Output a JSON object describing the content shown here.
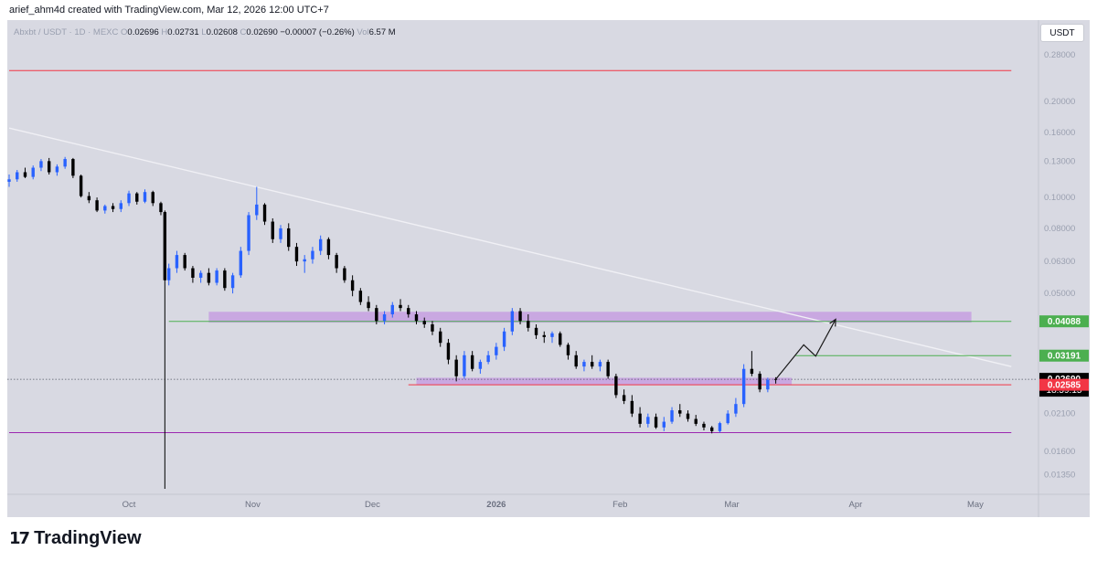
{
  "header": {
    "credit": "arief_ahm4d created with TradingView.com, Mar 12, 2026 12:00 UTC+7"
  },
  "legend": {
    "symbol": "Abxbt / USDT · 1D · MEXC",
    "open_label": "O",
    "open": "0.02696",
    "high_label": "H",
    "high": "0.02731",
    "low_label": "L",
    "low": "0.02608",
    "close_label": "C",
    "close": "0.02690",
    "change": "−0.00007 (−0.26%)",
    "vol_label": "Vol",
    "vol": "6.57 M"
  },
  "currency_button": "USDT",
  "footer": {
    "brand": "TradingView",
    "mark": "17"
  },
  "colors": {
    "bg": "#d8d9e2",
    "up": "#2962ff",
    "down": "#000000",
    "zone": "#c79fe0",
    "green_level": "#4caf50",
    "red_level": "#f23645",
    "purple_level": "#9c27b0",
    "trendline": "#f0f0f5"
  },
  "chart_data": {
    "type": "candlestick",
    "title": "Abxbt / USDT · 1D · MEXC",
    "y_scale": "log",
    "yticks": [
      "0.28000",
      "0.20000",
      "0.16000",
      "0.13000",
      "0.10000",
      "0.08000",
      "0.06300",
      "0.05000",
      "0.04000",
      "0.03200",
      "0.02600",
      "0.02100",
      "0.01600",
      "0.01350"
    ],
    "xticks": [
      "Oct",
      "Nov",
      "Dec",
      "2026",
      "Feb",
      "Mar",
      "Apr",
      "May"
    ],
    "ylim": [
      0.0118,
      0.36
    ],
    "price_labels": [
      {
        "value": 0.04088,
        "text": "0.04088",
        "color": "#4caf50"
      },
      {
        "value": 0.03191,
        "text": "0.03191",
        "color": "#4caf50"
      },
      {
        "value": 0.0269,
        "text": "0.02690",
        "color": "#000000",
        "sub": "18:59:15"
      },
      {
        "value": 0.02585,
        "text": "0.02585",
        "color": "#f23645"
      }
    ],
    "horizontal_lines": [
      {
        "value": 0.25,
        "color": "#f23645",
        "from": "2025-09-01",
        "to": "2026-05-10"
      },
      {
        "value": 0.04088,
        "color": "#4caf50",
        "from": "2025-10-11",
        "to": "2026-05-10"
      },
      {
        "value": 0.03191,
        "color": "#4caf50",
        "from": "2026-03-17",
        "to": "2026-05-10"
      },
      {
        "value": 0.02585,
        "color": "#f23645",
        "from": "2025-12-10",
        "to": "2026-05-10"
      },
      {
        "value": 0.0183,
        "color": "#9c27b0",
        "from": "2025-09-01",
        "to": "2026-05-10"
      }
    ],
    "current_price_line": 0.0269,
    "zones": [
      {
        "from": "2025-10-21",
        "to": "2026-04-30",
        "low": 0.0405,
        "high": 0.0438
      },
      {
        "from": "2025-12-12",
        "to": "2026-03-16",
        "low": 0.0258,
        "high": 0.0272
      }
    ],
    "trendline": [
      {
        "date": "2025-09-01",
        "value": 0.165
      },
      {
        "date": "2026-05-10",
        "value": 0.0295
      }
    ],
    "projection_path": [
      {
        "date": "2026-03-12",
        "value": 0.0269
      },
      {
        "date": "2026-03-19",
        "value": 0.0345
      },
      {
        "date": "2026-03-22",
        "value": 0.0318
      },
      {
        "date": "2026-03-27",
        "value": 0.0415
      }
    ],
    "candles": [
      {
        "date": "2025-09-01",
        "o": 0.112,
        "h": 0.118,
        "l": 0.108,
        "c": 0.114
      },
      {
        "date": "2025-09-03",
        "o": 0.114,
        "h": 0.122,
        "l": 0.112,
        "c": 0.12
      },
      {
        "date": "2025-09-05",
        "o": 0.12,
        "h": 0.124,
        "l": 0.115,
        "c": 0.116
      },
      {
        "date": "2025-09-07",
        "o": 0.116,
        "h": 0.126,
        "l": 0.114,
        "c": 0.124
      },
      {
        "date": "2025-09-09",
        "o": 0.124,
        "h": 0.132,
        "l": 0.121,
        "c": 0.13
      },
      {
        "date": "2025-09-11",
        "o": 0.13,
        "h": 0.133,
        "l": 0.118,
        "c": 0.12
      },
      {
        "date": "2025-09-13",
        "o": 0.12,
        "h": 0.127,
        "l": 0.117,
        "c": 0.125
      },
      {
        "date": "2025-09-15",
        "o": 0.125,
        "h": 0.134,
        "l": 0.123,
        "c": 0.132
      },
      {
        "date": "2025-09-17",
        "o": 0.132,
        "h": 0.133,
        "l": 0.115,
        "c": 0.117
      },
      {
        "date": "2025-09-19",
        "o": 0.117,
        "h": 0.118,
        "l": 0.1,
        "c": 0.101
      },
      {
        "date": "2025-09-21",
        "o": 0.101,
        "h": 0.104,
        "l": 0.096,
        "c": 0.098
      },
      {
        "date": "2025-09-23",
        "o": 0.098,
        "h": 0.1,
        "l": 0.09,
        "c": 0.091
      },
      {
        "date": "2025-09-25",
        "o": 0.091,
        "h": 0.095,
        "l": 0.089,
        "c": 0.094
      },
      {
        "date": "2025-09-27",
        "o": 0.094,
        "h": 0.096,
        "l": 0.09,
        "c": 0.092
      },
      {
        "date": "2025-09-29",
        "o": 0.092,
        "h": 0.098,
        "l": 0.09,
        "c": 0.096
      },
      {
        "date": "2025-10-01",
        "o": 0.096,
        "h": 0.105,
        "l": 0.094,
        "c": 0.103
      },
      {
        "date": "2025-10-03",
        "o": 0.103,
        "h": 0.104,
        "l": 0.095,
        "c": 0.097
      },
      {
        "date": "2025-10-05",
        "o": 0.097,
        "h": 0.106,
        "l": 0.096,
        "c": 0.104
      },
      {
        "date": "2025-10-07",
        "o": 0.104,
        "h": 0.105,
        "l": 0.094,
        "c": 0.096
      },
      {
        "date": "2025-10-09",
        "o": 0.096,
        "h": 0.097,
        "l": 0.088,
        "c": 0.09
      },
      {
        "date": "2025-10-10",
        "o": 0.09,
        "h": 0.091,
        "l": 0.0122,
        "c": 0.055
      },
      {
        "date": "2025-10-11",
        "o": 0.055,
        "h": 0.062,
        "l": 0.053,
        "c": 0.06
      },
      {
        "date": "2025-10-13",
        "o": 0.06,
        "h": 0.068,
        "l": 0.058,
        "c": 0.066
      },
      {
        "date": "2025-10-15",
        "o": 0.066,
        "h": 0.067,
        "l": 0.059,
        "c": 0.06
      },
      {
        "date": "2025-10-17",
        "o": 0.06,
        "h": 0.061,
        "l": 0.054,
        "c": 0.056
      },
      {
        "date": "2025-10-19",
        "o": 0.056,
        "h": 0.059,
        "l": 0.054,
        "c": 0.058
      },
      {
        "date": "2025-10-21",
        "o": 0.058,
        "h": 0.06,
        "l": 0.053,
        "c": 0.054
      },
      {
        "date": "2025-10-23",
        "o": 0.054,
        "h": 0.06,
        "l": 0.053,
        "c": 0.059
      },
      {
        "date": "2025-10-25",
        "o": 0.059,
        "h": 0.06,
        "l": 0.051,
        "c": 0.052
      },
      {
        "date": "2025-10-27",
        "o": 0.052,
        "h": 0.058,
        "l": 0.05,
        "c": 0.057
      },
      {
        "date": "2025-10-29",
        "o": 0.057,
        "h": 0.07,
        "l": 0.056,
        "c": 0.068
      },
      {
        "date": "2025-10-31",
        "o": 0.068,
        "h": 0.09,
        "l": 0.066,
        "c": 0.088
      },
      {
        "date": "2025-11-02",
        "o": 0.088,
        "h": 0.108,
        "l": 0.085,
        "c": 0.095
      },
      {
        "date": "2025-11-04",
        "o": 0.095,
        "h": 0.096,
        "l": 0.082,
        "c": 0.084
      },
      {
        "date": "2025-11-06",
        "o": 0.084,
        "h": 0.086,
        "l": 0.072,
        "c": 0.074
      },
      {
        "date": "2025-11-08",
        "o": 0.074,
        "h": 0.082,
        "l": 0.072,
        "c": 0.08
      },
      {
        "date": "2025-11-10",
        "o": 0.08,
        "h": 0.083,
        "l": 0.068,
        "c": 0.07
      },
      {
        "date": "2025-11-12",
        "o": 0.07,
        "h": 0.072,
        "l": 0.061,
        "c": 0.063
      },
      {
        "date": "2025-11-14",
        "o": 0.063,
        "h": 0.066,
        "l": 0.058,
        "c": 0.064
      },
      {
        "date": "2025-11-16",
        "o": 0.064,
        "h": 0.07,
        "l": 0.062,
        "c": 0.068
      },
      {
        "date": "2025-11-18",
        "o": 0.068,
        "h": 0.076,
        "l": 0.066,
        "c": 0.074
      },
      {
        "date": "2025-11-20",
        "o": 0.074,
        "h": 0.075,
        "l": 0.064,
        "c": 0.066
      },
      {
        "date": "2025-11-22",
        "o": 0.066,
        "h": 0.067,
        "l": 0.058,
        "c": 0.06
      },
      {
        "date": "2025-11-24",
        "o": 0.06,
        "h": 0.061,
        "l": 0.054,
        "c": 0.055
      },
      {
        "date": "2025-11-26",
        "o": 0.055,
        "h": 0.057,
        "l": 0.049,
        "c": 0.051
      },
      {
        "date": "2025-11-28",
        "o": 0.051,
        "h": 0.052,
        "l": 0.046,
        "c": 0.047
      },
      {
        "date": "2025-11-30",
        "o": 0.047,
        "h": 0.049,
        "l": 0.044,
        "c": 0.045
      },
      {
        "date": "2025-12-02",
        "o": 0.045,
        "h": 0.046,
        "l": 0.04,
        "c": 0.041
      },
      {
        "date": "2025-12-04",
        "o": 0.041,
        "h": 0.044,
        "l": 0.04,
        "c": 0.043
      },
      {
        "date": "2025-12-06",
        "o": 0.043,
        "h": 0.047,
        "l": 0.042,
        "c": 0.046
      },
      {
        "date": "2025-12-08",
        "o": 0.046,
        "h": 0.048,
        "l": 0.044,
        "c": 0.045
      },
      {
        "date": "2025-12-10",
        "o": 0.045,
        "h": 0.046,
        "l": 0.042,
        "c": 0.043
      },
      {
        "date": "2025-12-12",
        "o": 0.043,
        "h": 0.044,
        "l": 0.04,
        "c": 0.041
      },
      {
        "date": "2025-12-14",
        "o": 0.041,
        "h": 0.042,
        "l": 0.039,
        "c": 0.04
      },
      {
        "date": "2025-12-16",
        "o": 0.04,
        "h": 0.041,
        "l": 0.037,
        "c": 0.038
      },
      {
        "date": "2025-12-18",
        "o": 0.038,
        "h": 0.039,
        "l": 0.034,
        "c": 0.035
      },
      {
        "date": "2025-12-20",
        "o": 0.035,
        "h": 0.036,
        "l": 0.03,
        "c": 0.031
      },
      {
        "date": "2025-12-22",
        "o": 0.031,
        "h": 0.032,
        "l": 0.0265,
        "c": 0.0275
      },
      {
        "date": "2025-12-24",
        "o": 0.0275,
        "h": 0.033,
        "l": 0.027,
        "c": 0.032
      },
      {
        "date": "2025-12-26",
        "o": 0.032,
        "h": 0.033,
        "l": 0.0285,
        "c": 0.029
      },
      {
        "date": "2025-12-28",
        "o": 0.029,
        "h": 0.031,
        "l": 0.028,
        "c": 0.0305
      },
      {
        "date": "2025-12-30",
        "o": 0.0305,
        "h": 0.033,
        "l": 0.03,
        "c": 0.032
      },
      {
        "date": "2026-01-01",
        "o": 0.032,
        "h": 0.035,
        "l": 0.031,
        "c": 0.034
      },
      {
        "date": "2026-01-03",
        "o": 0.034,
        "h": 0.039,
        "l": 0.033,
        "c": 0.038
      },
      {
        "date": "2026-01-05",
        "o": 0.038,
        "h": 0.045,
        "l": 0.037,
        "c": 0.044
      },
      {
        "date": "2026-01-07",
        "o": 0.044,
        "h": 0.045,
        "l": 0.04,
        "c": 0.041
      },
      {
        "date": "2026-01-09",
        "o": 0.041,
        "h": 0.043,
        "l": 0.038,
        "c": 0.039
      },
      {
        "date": "2026-01-11",
        "o": 0.039,
        "h": 0.04,
        "l": 0.036,
        "c": 0.037
      },
      {
        "date": "2026-01-13",
        "o": 0.037,
        "h": 0.038,
        "l": 0.035,
        "c": 0.0365
      },
      {
        "date": "2026-01-15",
        "o": 0.0365,
        "h": 0.038,
        "l": 0.035,
        "c": 0.0375
      },
      {
        "date": "2026-01-17",
        "o": 0.0375,
        "h": 0.038,
        "l": 0.034,
        "c": 0.0345
      },
      {
        "date": "2026-01-19",
        "o": 0.0345,
        "h": 0.035,
        "l": 0.031,
        "c": 0.032
      },
      {
        "date": "2026-01-21",
        "o": 0.032,
        "h": 0.033,
        "l": 0.029,
        "c": 0.0295
      },
      {
        "date": "2026-01-23",
        "o": 0.0295,
        "h": 0.031,
        "l": 0.0285,
        "c": 0.0305
      },
      {
        "date": "2026-01-25",
        "o": 0.0305,
        "h": 0.032,
        "l": 0.029,
        "c": 0.0295
      },
      {
        "date": "2026-01-27",
        "o": 0.0295,
        "h": 0.031,
        "l": 0.0285,
        "c": 0.0305
      },
      {
        "date": "2026-01-29",
        "o": 0.0305,
        "h": 0.031,
        "l": 0.027,
        "c": 0.0275
      },
      {
        "date": "2026-01-31",
        "o": 0.0275,
        "h": 0.028,
        "l": 0.0235,
        "c": 0.024
      },
      {
        "date": "2026-02-02",
        "o": 0.024,
        "h": 0.025,
        "l": 0.0225,
        "c": 0.023
      },
      {
        "date": "2026-02-04",
        "o": 0.023,
        "h": 0.024,
        "l": 0.0205,
        "c": 0.021
      },
      {
        "date": "2026-02-06",
        "o": 0.021,
        "h": 0.022,
        "l": 0.019,
        "c": 0.0195
      },
      {
        "date": "2026-02-08",
        "o": 0.0195,
        "h": 0.021,
        "l": 0.019,
        "c": 0.0205
      },
      {
        "date": "2026-02-10",
        "o": 0.0205,
        "h": 0.021,
        "l": 0.0188,
        "c": 0.019
      },
      {
        "date": "2026-02-12",
        "o": 0.019,
        "h": 0.0205,
        "l": 0.0185,
        "c": 0.0198
      },
      {
        "date": "2026-02-14",
        "o": 0.0198,
        "h": 0.022,
        "l": 0.0195,
        "c": 0.0215
      },
      {
        "date": "2026-02-16",
        "o": 0.0215,
        "h": 0.0225,
        "l": 0.0205,
        "c": 0.021
      },
      {
        "date": "2026-02-18",
        "o": 0.021,
        "h": 0.0215,
        "l": 0.0198,
        "c": 0.0202
      },
      {
        "date": "2026-02-20",
        "o": 0.0202,
        "h": 0.0208,
        "l": 0.0192,
        "c": 0.0195
      },
      {
        "date": "2026-02-22",
        "o": 0.0195,
        "h": 0.0198,
        "l": 0.0186,
        "c": 0.019
      },
      {
        "date": "2026-02-24",
        "o": 0.019,
        "h": 0.0192,
        "l": 0.0182,
        "c": 0.0185
      },
      {
        "date": "2026-02-26",
        "o": 0.0185,
        "h": 0.0198,
        "l": 0.0183,
        "c": 0.0196
      },
      {
        "date": "2026-02-28",
        "o": 0.0196,
        "h": 0.0215,
        "l": 0.0194,
        "c": 0.021
      },
      {
        "date": "2026-03-02",
        "o": 0.021,
        "h": 0.0235,
        "l": 0.0205,
        "c": 0.0225
      },
      {
        "date": "2026-03-04",
        "o": 0.0225,
        "h": 0.03,
        "l": 0.022,
        "c": 0.029
      },
      {
        "date": "2026-03-06",
        "o": 0.029,
        "h": 0.033,
        "l": 0.0275,
        "c": 0.028
      },
      {
        "date": "2026-03-08",
        "o": 0.028,
        "h": 0.0285,
        "l": 0.0245,
        "c": 0.025
      },
      {
        "date": "2026-03-10",
        "o": 0.025,
        "h": 0.0272,
        "l": 0.0245,
        "c": 0.0268
      },
      {
        "date": "2026-03-12",
        "o": 0.02696,
        "h": 0.02731,
        "l": 0.02608,
        "c": 0.0269
      }
    ]
  }
}
